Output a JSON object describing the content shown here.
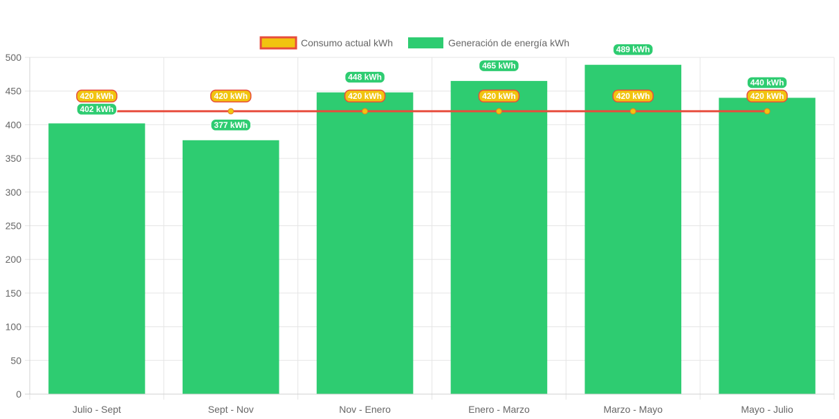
{
  "chart_data": {
    "type": "bar",
    "categories": [
      "Julio - Sept",
      "Sept - Nov",
      "Nov - Enero",
      "Enero - Marzo",
      "Marzo - Mayo",
      "Mayo - Julio"
    ],
    "series": [
      {
        "name": "Consumo actual kWh",
        "type": "line",
        "values": [
          420,
          420,
          420,
          420,
          420,
          420
        ],
        "labels": [
          "420 kWh",
          "420 kWh",
          "420 kWh",
          "420 kWh",
          "420 kWh",
          "420 kWh"
        ],
        "color": "#e74c3c",
        "fill": "#f1c40f"
      },
      {
        "name": "Generación de energía kWh",
        "type": "bar",
        "values": [
          402,
          377,
          448,
          465,
          489,
          440
        ],
        "labels": [
          "402 kWh",
          "377 kWh",
          "448 kWh",
          "465 kWh",
          "489 kWh",
          "440 kWh"
        ],
        "color": "#2ecc71"
      }
    ],
    "ylim": [
      0,
      500
    ],
    "yticks": [
      0,
      50,
      100,
      150,
      200,
      250,
      300,
      350,
      400,
      450,
      500
    ],
    "grid": true,
    "legend_position": "top"
  }
}
